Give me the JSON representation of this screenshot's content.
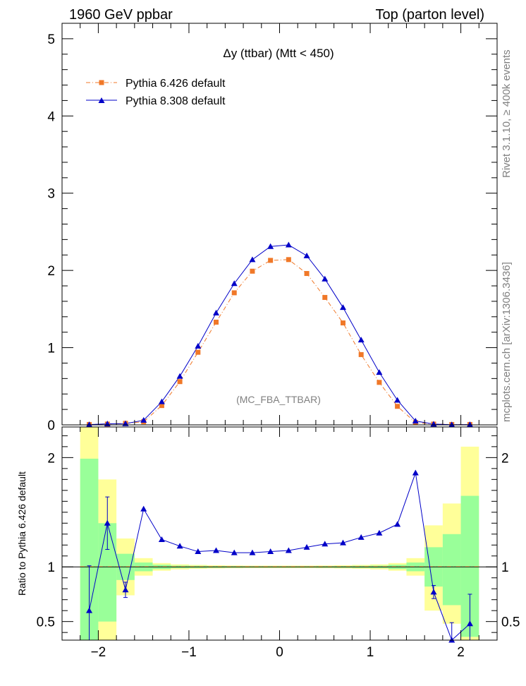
{
  "header": {
    "left": "1960 GeV ppbar",
    "right": "Top (parton level)"
  },
  "side_labels": {
    "rivet": "Rivet 3.1.10, ≥ 400k events",
    "mcplots": "mcplots.cern.ch [arXiv:1306.3436]"
  },
  "colors": {
    "pythia6": "#f07828",
    "pythia8": "#0000c8",
    "band_inner": "#99ff99",
    "band_outer": "#ffff99"
  },
  "chart_data": [
    {
      "type": "line",
      "title": "Δy (ttbar) (Mtt < 450)",
      "watermark": "(MC_FBA_TTBAR)",
      "xlabel": "",
      "ylabel": "",
      "xlim": [
        -2.4,
        2.4
      ],
      "ylim": [
        0,
        5.2
      ],
      "yticks": [
        "0",
        "1",
        "2",
        "3",
        "4",
        "5"
      ],
      "x": [
        -2.1,
        -1.9,
        -1.7,
        -1.5,
        -1.3,
        -1.1,
        -0.9,
        -0.7,
        -0.5,
        -0.3,
        -0.1,
        0.1,
        0.3,
        0.5,
        0.7,
        0.9,
        1.1,
        1.3,
        1.5,
        1.7,
        1.9,
        2.1
      ],
      "series": [
        {
          "name": "Pythia 6.426 default",
          "style": "dash-dot line, square markers",
          "values": [
            0.005,
            0.01,
            0.02,
            0.04,
            0.25,
            0.56,
            0.94,
            1.33,
            1.71,
            1.99,
            2.13,
            2.14,
            1.96,
            1.65,
            1.32,
            0.91,
            0.55,
            0.24,
            0.03,
            0.01,
            0.005,
            0.005
          ]
        },
        {
          "name": "Pythia 8.308 default",
          "style": "solid line, triangle markers",
          "values": [
            0.003,
            0.014,
            0.016,
            0.06,
            0.3,
            0.63,
            1.02,
            1.45,
            1.83,
            2.14,
            2.31,
            2.33,
            2.19,
            1.89,
            1.52,
            1.1,
            0.68,
            0.32,
            0.05,
            0.01,
            0.002,
            0.003
          ]
        }
      ]
    },
    {
      "type": "line",
      "title": "",
      "xlabel": "",
      "ylabel": "Ratio to Pythia 6.426 default",
      "xlim": [
        -2.4,
        2.4
      ],
      "ylim": [
        0.33,
        2.28
      ],
      "yticks": [
        "0.5",
        "1",
        "2"
      ],
      "xticks": [
        "−2",
        "−1",
        "0",
        "1",
        "2"
      ],
      "x": [
        -2.1,
        -1.9,
        -1.7,
        -1.5,
        -1.3,
        -1.1,
        -0.9,
        -0.7,
        -0.5,
        -0.3,
        -0.1,
        0.1,
        0.3,
        0.5,
        0.7,
        0.9,
        1.1,
        1.3,
        1.5,
        1.7,
        1.9,
        2.1
      ],
      "reference_line": 1,
      "bands": {
        "inner": [
          [
            0.0,
            1.99
          ],
          [
            0.5,
            1.4
          ],
          [
            0.88,
            1.12
          ],
          [
            0.96,
            1.04
          ],
          [
            0.98,
            1.02
          ],
          [
            0.988,
            1.012
          ],
          [
            0.99,
            1.01
          ],
          [
            0.992,
            1.008
          ],
          [
            0.993,
            1.007
          ],
          [
            0.994,
            1.006
          ],
          [
            0.994,
            1.006
          ],
          [
            0.994,
            1.006
          ],
          [
            0.994,
            1.006
          ],
          [
            0.993,
            1.007
          ],
          [
            0.992,
            1.008
          ],
          [
            0.99,
            1.01
          ],
          [
            0.988,
            1.012
          ],
          [
            0.98,
            1.02
          ],
          [
            0.96,
            1.04
          ],
          [
            0.82,
            1.18
          ],
          [
            0.65,
            1.3
          ],
          [
            0.36,
            1.65
          ]
        ],
        "outer": [
          [
            0.0,
            2.3
          ],
          [
            0.22,
            1.8
          ],
          [
            0.74,
            1.26
          ],
          [
            0.92,
            1.08
          ],
          [
            0.965,
            1.035
          ],
          [
            0.977,
            1.023
          ],
          [
            0.982,
            1.018
          ],
          [
            0.985,
            1.015
          ],
          [
            0.987,
            1.013
          ],
          [
            0.988,
            1.012
          ],
          [
            0.988,
            1.012
          ],
          [
            0.988,
            1.012
          ],
          [
            0.988,
            1.012
          ],
          [
            0.987,
            1.013
          ],
          [
            0.985,
            1.015
          ],
          [
            0.982,
            1.018
          ],
          [
            0.977,
            1.023
          ],
          [
            0.965,
            1.035
          ],
          [
            0.92,
            1.08
          ],
          [
            0.6,
            1.38
          ],
          [
            0.48,
            1.58
          ],
          [
            0.28,
            2.1
          ]
        ]
      },
      "series": [
        {
          "name": "Pythia 8.308 default",
          "values": [
            0.6,
            1.4,
            0.79,
            1.53,
            1.25,
            1.19,
            1.14,
            1.15,
            1.13,
            1.13,
            1.14,
            1.15,
            1.18,
            1.21,
            1.22,
            1.27,
            1.31,
            1.39,
            1.86,
            0.77,
            0.33,
            0.48
          ],
          "errors": [
            0.41,
            0.24,
            0.07,
            0,
            0,
            0,
            0,
            0,
            0,
            0,
            0,
            0,
            0,
            0,
            0,
            0,
            0,
            0,
            0,
            0.06,
            0.16,
            0.27
          ]
        }
      ]
    }
  ]
}
